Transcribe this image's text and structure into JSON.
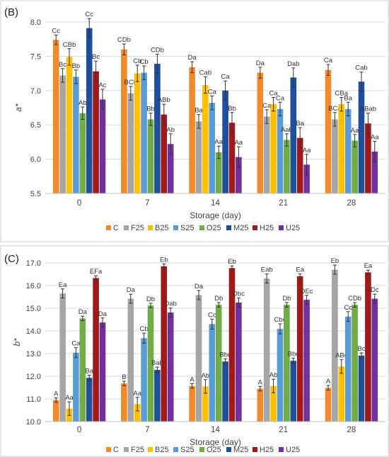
{
  "chart_data": [
    {
      "type": "bar",
      "panel_label": "(B)",
      "title": "",
      "xlabel": "Storage (day)",
      "ylabel": "a*",
      "ylim": [
        5.5,
        8.0
      ],
      "yticks": [
        "5.5",
        "6.0",
        "6.5",
        "7.0",
        "7.5",
        "8.0"
      ],
      "grid": true,
      "legend_position": "bottom",
      "categories": [
        "0",
        "7",
        "14",
        "21",
        "28"
      ],
      "series": [
        {
          "name": "C",
          "color": "#F08A2B",
          "values": [
            7.74,
            7.6,
            7.34,
            7.26,
            7.3
          ],
          "errors": [
            0.07,
            0.08,
            0.08,
            0.08,
            0.08
          ],
          "labels": [
            "Cc",
            "CDb",
            "Da",
            "Da",
            "Ca"
          ]
        },
        {
          "name": "F25",
          "color": "#A5A5A5",
          "values": [
            7.22,
            6.96,
            6.55,
            6.62,
            6.58
          ],
          "errors": [
            0.1,
            0.1,
            0.1,
            0.1,
            0.1
          ],
          "labels": [
            "Bc",
            "BCb",
            "Ba",
            "Ca",
            "BCa"
          ]
        },
        {
          "name": "B25",
          "color": "#FFC000",
          "values": [
            7.49,
            7.25,
            7.08,
            6.8,
            6.8
          ],
          "errors": [
            0.12,
            0.12,
            0.12,
            0.1,
            0.1
          ],
          "labels": [
            "CBb",
            "Cb",
            "Cab",
            "Ca",
            "CBa"
          ]
        },
        {
          "name": "S25",
          "color": "#5B9BD5",
          "values": [
            7.2,
            7.26,
            6.82,
            6.73,
            6.73
          ],
          "errors": [
            0.1,
            0.1,
            0.1,
            0.1,
            0.1
          ],
          "labels": [
            "Bb",
            "Cb",
            "Ca",
            "Ca",
            "Ba"
          ]
        },
        {
          "name": "O25",
          "color": "#70AD47",
          "values": [
            6.67,
            6.58,
            6.1,
            6.28,
            6.27
          ],
          "errors": [
            0.09,
            0.09,
            0.09,
            0.09,
            0.09
          ],
          "labels": [
            "Ab",
            "Bb",
            "Aa",
            "Aab",
            "Aa"
          ]
        },
        {
          "name": "M25",
          "color": "#1F4E9B",
          "values": [
            7.91,
            7.39,
            7.0,
            7.19,
            7.13
          ],
          "errors": [
            0.14,
            0.14,
            0.14,
            0.14,
            0.14
          ],
          "labels": [
            "Cc",
            "CDb",
            "Ca",
            "Dab",
            "Cab"
          ]
        },
        {
          "name": "H25",
          "color": "#9E1A1A",
          "values": [
            7.28,
            6.65,
            6.53,
            6.31,
            6.52
          ],
          "errors": [
            0.15,
            0.15,
            0.15,
            0.15,
            0.15
          ],
          "labels": [
            "Bc",
            "ABb",
            "Bb",
            "Ba",
            "ABab"
          ]
        },
        {
          "name": "U25",
          "color": "#7030A0",
          "values": [
            6.87,
            6.22,
            6.03,
            5.92,
            6.11
          ],
          "errors": [
            0.15,
            0.15,
            0.15,
            0.15,
            0.15
          ],
          "labels": [
            "Ac",
            "Ab",
            "Aa",
            "Aa",
            "Aa"
          ]
        }
      ]
    },
    {
      "type": "bar",
      "panel_label": "(C)",
      "title": "",
      "xlabel": "Storage (day)",
      "ylabel": "b*",
      "ylim": [
        10.0,
        17.0
      ],
      "yticks": [
        "10.0",
        "11.0",
        "12.0",
        "13.0",
        "14.0",
        "15.0",
        "16.0",
        "17.0"
      ],
      "grid": true,
      "legend_position": "bottom",
      "categories": [
        "0",
        "7",
        "14",
        "21",
        "28"
      ],
      "series": [
        {
          "name": "C",
          "color": "#F08A2B",
          "values": [
            10.95,
            11.68,
            11.57,
            11.45,
            11.49
          ],
          "errors": [
            0.1,
            0.1,
            0.1,
            0.1,
            0.1
          ],
          "labels": [
            "A",
            "B",
            "A",
            "A",
            "A"
          ]
        },
        {
          "name": "F25",
          "color": "#A5A5A5",
          "values": [
            15.65,
            15.42,
            15.58,
            16.31,
            16.7
          ],
          "errors": [
            0.2,
            0.2,
            0.2,
            0.2,
            0.2
          ],
          "labels": [
            "Ea",
            "Da",
            "Da",
            "Eab",
            "Eb"
          ]
        },
        {
          "name": "B25",
          "color": "#FFC000",
          "values": [
            10.57,
            10.77,
            11.55,
            11.57,
            12.43
          ],
          "errors": [
            0.3,
            0.3,
            0.3,
            0.3,
            0.3
          ],
          "labels": [
            "Aa",
            "Aa",
            "Ab",
            "Ab",
            "ABc"
          ]
        },
        {
          "name": "S25",
          "color": "#5B9BD5",
          "values": [
            13.04,
            13.68,
            14.3,
            14.09,
            14.63
          ],
          "errors": [
            0.22,
            0.22,
            0.22,
            0.22,
            0.22
          ],
          "labels": [
            "Ca",
            "Cb",
            "Cc",
            "Cbc",
            "Cc"
          ]
        },
        {
          "name": "O25",
          "color": "#70AD47",
          "values": [
            14.55,
            15.12,
            15.15,
            15.15,
            15.15
          ],
          "errors": [
            0.1,
            0.1,
            0.1,
            0.1,
            0.1
          ],
          "labels": [
            "Da",
            "Db",
            "Db",
            "Db",
            "CDb"
          ]
        },
        {
          "name": "M25",
          "color": "#1F4E9B",
          "values": [
            11.93,
            12.28,
            12.65,
            12.68,
            12.91
          ],
          "errors": [
            0.12,
            0.12,
            0.12,
            0.12,
            0.12
          ],
          "labels": [
            "Ba",
            "Bab",
            "Bbc",
            "Bbc",
            "Bc"
          ]
        },
        {
          "name": "H25",
          "color": "#9E1A1A",
          "values": [
            16.33,
            16.85,
            16.77,
            16.41,
            16.58
          ],
          "errors": [
            0.1,
            0.1,
            0.1,
            0.1,
            0.1
          ],
          "labels": [
            "EFa",
            "Eb",
            "Eb",
            "Ea",
            "Ea"
          ]
        },
        {
          "name": "U25",
          "color": "#7030A0",
          "values": [
            14.37,
            14.81,
            15.25,
            15.37,
            15.42
          ],
          "errors": [
            0.2,
            0.2,
            0.2,
            0.2,
            0.2
          ],
          "labels": [
            "Da",
            "Dab",
            "Dbc",
            "DEc",
            "Dc"
          ]
        }
      ]
    }
  ]
}
